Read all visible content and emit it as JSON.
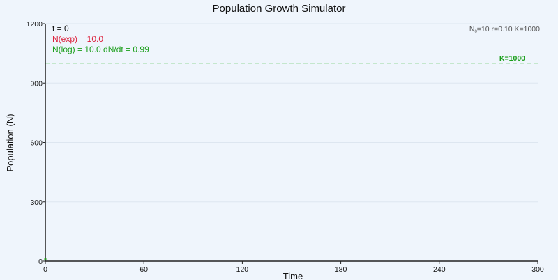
{
  "chart_data": {
    "type": "line",
    "title": "Population Growth Simulator",
    "xlabel": "Time",
    "ylabel": "Population (N)",
    "xlim": [
      0,
      300
    ],
    "ylim": [
      0,
      1200
    ],
    "x_ticks": [
      0,
      60,
      120,
      180,
      240,
      300
    ],
    "y_ticks": [
      0,
      300,
      600,
      900,
      1200
    ],
    "grid": true,
    "series": [
      {
        "name": "N(exp)",
        "color": "#dc1f3a",
        "x": [
          0
        ],
        "y": [
          10.0
        ]
      },
      {
        "name": "N(log)",
        "color": "#1a9e1a",
        "x": [
          0
        ],
        "y": [
          10.0
        ]
      }
    ],
    "carrying_capacity": {
      "value": 1000,
      "label": "K=1000",
      "color": "#1a9e1a",
      "line_color": "#7fd07f"
    },
    "readouts": {
      "time": "t = 0",
      "exp": "N(exp) = 10.0",
      "log": "N(log) = 10.0  dN/dt = 0.99"
    },
    "params": {
      "n0_symbol": "N",
      "n0_subscript": "0",
      "rest": "=10  r=0.10  K=1000"
    }
  },
  "colors": {
    "background": "#eff5fc",
    "axis": "#222222",
    "grid": "#dde6f0",
    "text": "#111111"
  }
}
